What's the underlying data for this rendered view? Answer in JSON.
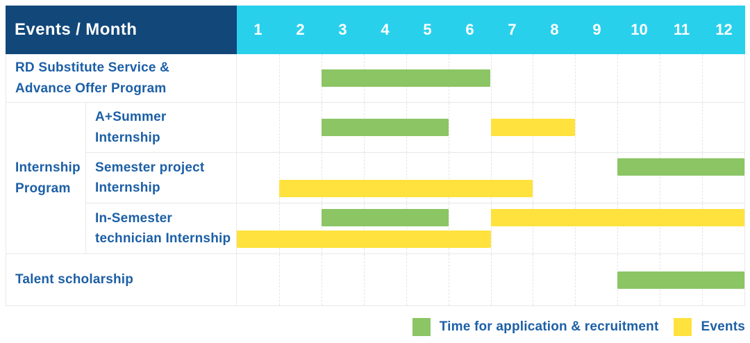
{
  "table": {
    "header": {
      "label": "Events / Month"
    }
  },
  "chart_data": {
    "type": "bar",
    "subtype": "gantt-schedule",
    "title": "Events / Month",
    "x": {
      "label": "Month",
      "categories": [
        "1",
        "2",
        "3",
        "4",
        "5",
        "6",
        "7",
        "8",
        "9",
        "10",
        "11",
        "12"
      ],
      "range": [
        0,
        12
      ],
      "grid": "dashed-vertical-month-lines"
    },
    "colors": {
      "application": "#8bc564",
      "events": "#ffe23e",
      "header_navy": "#114779",
      "header_cyan": "#29d0ec",
      "label_text_blue": "#1c5fa6",
      "grid_line": "#e9e9e9"
    },
    "groups": [
      {
        "label": "Internship Program",
        "label_lines": [
          "Internship",
          "Program"
        ],
        "row_indexes": [
          1,
          2,
          3
        ]
      }
    ],
    "rows": [
      {
        "label": "RD Substitute Service & Advance Offer Program",
        "label_lines": [
          "RD Substitute Service &",
          "Advance Offer Program"
        ],
        "group": "",
        "tracks": [
          [
            {
              "series": "application",
              "start_month": 3,
              "end_month": 6
            }
          ]
        ]
      },
      {
        "label": "A+Summer Internship",
        "label_lines": [
          "A+Summer",
          "Internship"
        ],
        "group": "Internship Program",
        "tracks": [
          [
            {
              "series": "application",
              "start_month": 3,
              "end_month": 5
            },
            {
              "series": "events",
              "start_month": 7,
              "end_month": 8
            }
          ]
        ]
      },
      {
        "label": "Semester project Internship",
        "label_lines": [
          "Semester project",
          "Internship"
        ],
        "group": "Internship Program",
        "tracks": [
          [
            {
              "series": "application",
              "start_month": 10,
              "end_month": 12
            }
          ],
          [
            {
              "series": "events",
              "start_month": 2,
              "end_month": 7
            }
          ]
        ]
      },
      {
        "label": "In-Semester technician Internship",
        "label_lines": [
          "In-Semester",
          "technician Internship"
        ],
        "group": "Internship Program",
        "tracks": [
          [
            {
              "series": "application",
              "start_month": 3,
              "end_month": 5
            },
            {
              "series": "events",
              "start_month": 7,
              "end_month": 12
            }
          ],
          [
            {
              "series": "events",
              "start_month": 1,
              "end_month": 6
            }
          ]
        ]
      },
      {
        "label": "Talent scholarship",
        "label_lines": [
          "Talent scholarship"
        ],
        "group": "",
        "tracks": [
          [
            {
              "series": "application",
              "start_month": 10,
              "end_month": 12
            }
          ]
        ]
      }
    ],
    "legend": [
      {
        "name": "application",
        "label": "Time for application & recruitment",
        "color": "#8bc564"
      },
      {
        "name": "events",
        "label": "Events",
        "color": "#ffe23e"
      }
    ],
    "legend_position": "bottom-right"
  }
}
